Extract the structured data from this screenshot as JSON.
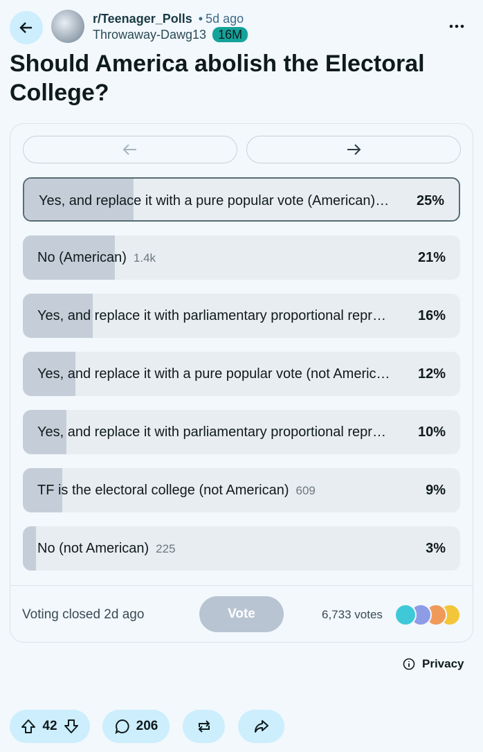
{
  "post": {
    "subreddit": "r/Teenager_Polls",
    "age": "5d ago",
    "author": "Throwaway-Dawg13",
    "author_badge": "16M",
    "title": "Should America abolish the Electoral College?"
  },
  "poll": {
    "options": [
      {
        "text": "Yes, and replace it with a pure popular vote (American)…",
        "share": 25,
        "share_label": "25%",
        "selected": true
      },
      {
        "text": "No (American)",
        "count": "1.4k",
        "share": 21,
        "share_label": "21%"
      },
      {
        "text": "Yes, and replace it with parliamentary proportional repr…",
        "share": 16,
        "share_label": "16%"
      },
      {
        "text": "Yes, and replace it with a pure popular vote (not Americ…",
        "share": 12,
        "share_label": "12%"
      },
      {
        "text": "Yes, and replace it with parliamentary proportional repr…",
        "share": 10,
        "share_label": "10%"
      },
      {
        "text": "TF is the electoral college (not American)",
        "count": "609",
        "share": 9,
        "share_label": "9%"
      },
      {
        "text": "No (not American)",
        "count": "225",
        "share": 3,
        "share_label": "3%"
      }
    ],
    "status": "Voting closed 2d ago",
    "button": "Vote",
    "total_votes": "6,733 votes"
  },
  "privacy": "Privacy",
  "actions": {
    "upvotes": "42",
    "comments": "206"
  }
}
